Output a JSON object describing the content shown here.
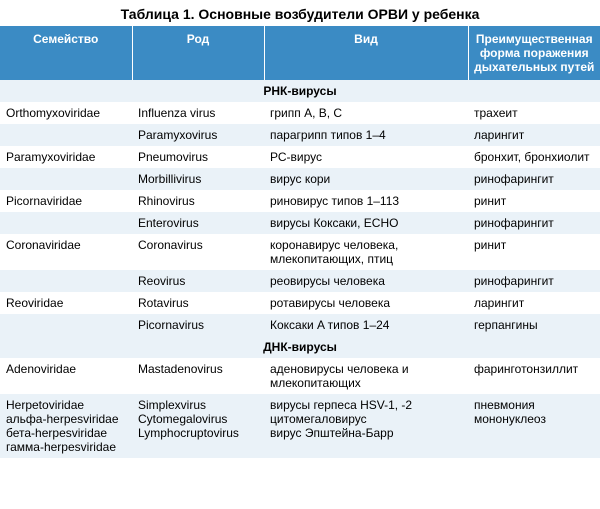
{
  "title": "Таблица 1. Основные возбудители ОРВИ у ребенка",
  "title_fontsize": "14px",
  "header_bg": "#3b8bc4",
  "header_fg": "#ffffff",
  "row_alt_bg": "#eaf2f8",
  "row_bg": "#ffffff",
  "section_bg": "#ffffff",
  "body_fontsize": "12px",
  "columns": [
    "Семейство",
    "Род",
    "Вид",
    "Преимущественная форма поражения дыхательных путей"
  ],
  "sections": [
    {
      "label": "РНК-вирусы",
      "rows": [
        [
          "Orthomyxoviridae",
          "Influenza virus",
          "грипп A, B, C",
          "трахеит"
        ],
        [
          "",
          "Paramyxovirus",
          "парагрипп типов 1–4",
          "ларингит"
        ],
        [
          "Paramyxoviridae",
          "Pneumovirus",
          "РС-вирус",
          "бронхит, бронхиолит"
        ],
        [
          "",
          "Morbillivirus",
          "вирус кори",
          "ринофарингит"
        ],
        [
          "Picornaviridae",
          "Rhinovirus",
          "риновирус типов 1–113",
          "ринит"
        ],
        [
          "",
          "Enterovirus",
          "вирусы Коксаки, ECHO",
          "ринофарингит"
        ],
        [
          "Coronaviridae",
          "Coronavirus",
          "коронавирус человека, млекопитающих, птиц",
          "ринит"
        ],
        [
          "",
          "Reovirus",
          "реовирусы человека",
          "ринофарингит"
        ],
        [
          "Reoviridae",
          "Rotavirus",
          "ротавирусы человека",
          "ларингит"
        ],
        [
          "",
          "Picornavirus",
          "Коксаки A типов 1–24",
          "герпангины"
        ]
      ]
    },
    {
      "label": "ДНК-вирусы",
      "rows": [
        [
          "Adenoviridae",
          "Mastadenovirus",
          "аденовирусы человека и млекопитающих",
          "фаринготонзиллит"
        ],
        [
          "Herpetoviridae\nальфа-herpesviridae\nбета-herpesviridae\nгамма-herpesviridae",
          "Simplexvirus\nCytomegalovirus\nLymphocruptovirus",
          "вирусы герпеса HSV-1, -2\nцитомегаловирус\nвирус Эпштейна-Барр",
          "пневмония\nмононуклеоз"
        ]
      ]
    }
  ]
}
